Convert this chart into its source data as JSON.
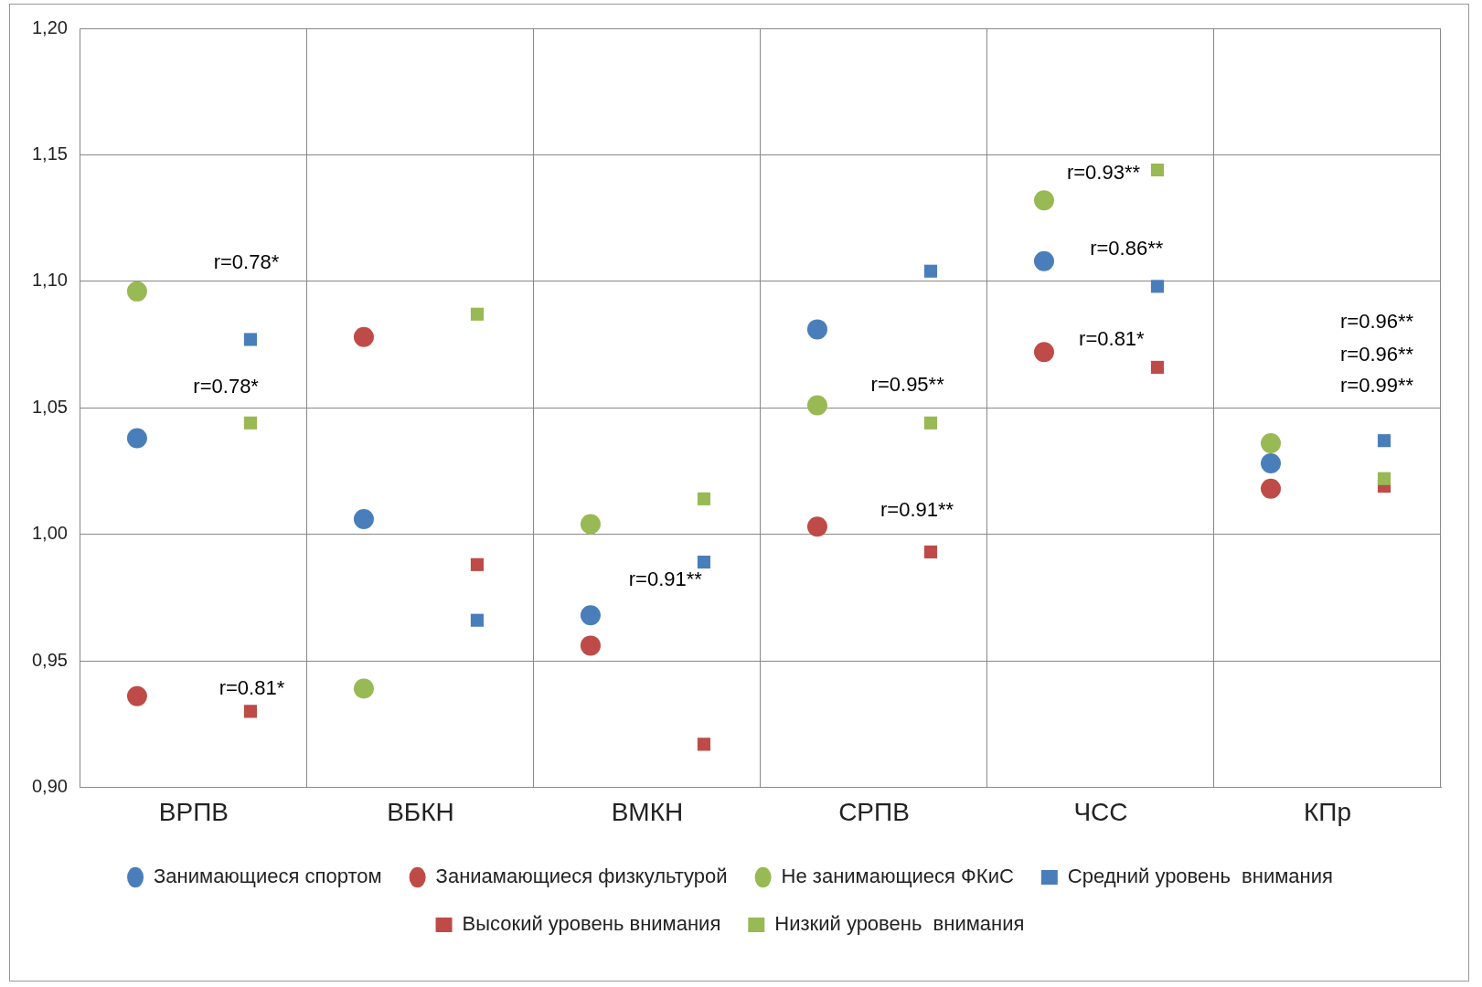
{
  "chart_data": {
    "type": "scatter",
    "categories": [
      "ВРПВ",
      "ВБКН",
      "ВМКН",
      "СРПВ",
      "ЧСС",
      "КПр"
    ],
    "ylim": [
      0.9,
      1.2
    ],
    "yticks": [
      {
        "value": 0.9,
        "label": "0,90"
      },
      {
        "value": 0.95,
        "label": "0,95"
      },
      {
        "value": 1.0,
        "label": "1,00"
      },
      {
        "value": 1.05,
        "label": "1,05"
      },
      {
        "value": 1.1,
        "label": "1,10"
      },
      {
        "value": 1.15,
        "label": "1,15"
      },
      {
        "value": 1.2,
        "label": "1,20"
      }
    ],
    "grid": true,
    "legend": "bottom",
    "series": [
      {
        "name": "Занимающиеся спортом",
        "color": "#4a7ebb",
        "marker": "circle",
        "values": [
          1.038,
          1.006,
          0.968,
          1.081,
          1.108,
          1.028
        ]
      },
      {
        "name": "Заниамающиеся физкультурой",
        "color": "#be4b48",
        "marker": "circle",
        "values": [
          0.936,
          1.078,
          0.956,
          1.003,
          1.072,
          1.018
        ]
      },
      {
        "name": "Не занимающиеся ФКиС",
        "color": "#98b954",
        "marker": "circle",
        "values": [
          1.096,
          0.939,
          1.004,
          1.051,
          1.132,
          1.036
        ]
      },
      {
        "name": "Средний уровень  внимания",
        "color": "#4a7ebb",
        "marker": "square",
        "values": [
          1.077,
          0.966,
          0.989,
          1.104,
          1.098,
          1.037
        ]
      },
      {
        "name": "Высокий уровень внимания",
        "color": "#be4b48",
        "marker": "square",
        "values": [
          0.93,
          0.988,
          0.917,
          0.993,
          1.066,
          1.019
        ]
      },
      {
        "name": "Низкий уровень  внимания",
        "color": "#98b954",
        "marker": "square",
        "values": [
          1.044,
          1.087,
          1.014,
          1.044,
          1.144,
          1.022
        ]
      }
    ],
    "annotations": [
      "r=0.78*",
      "r=0.78*",
      "r=0.81*",
      "r=0.91**",
      "r=0.95**",
      "r=0.91**",
      "r=0.93**",
      "r=0.86**",
      "r=0.81*",
      "r=0.96**",
      "r=0.96**",
      "r=0.99**"
    ]
  }
}
